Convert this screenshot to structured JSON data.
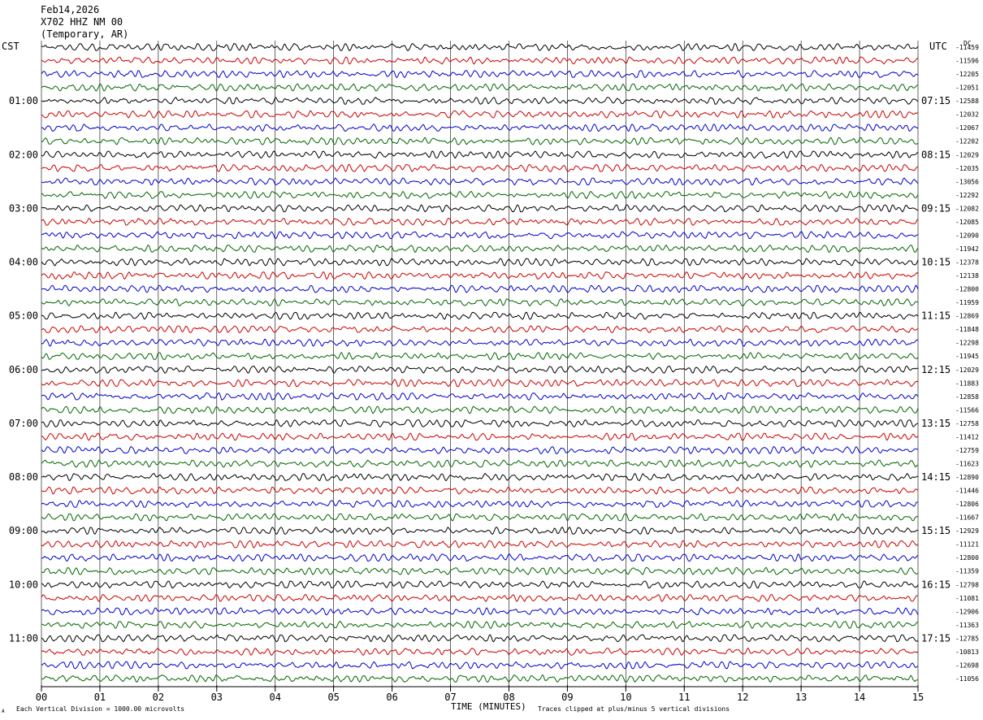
{
  "header": {
    "date": "Feb14,2026",
    "station": "X702 HHZ NM 00",
    "location": "(Temporary, AR)"
  },
  "left_zone_label": "CST",
  "right_zone_label": "UTC",
  "dc_label": "DC",
  "footer": {
    "scale_note": "Each Vertical Division = 1000.00 microvolts",
    "clip_note": "Traces clipped at plus/minus 5 vertical divisions",
    "corner_mark": "A"
  },
  "colors": {
    "trace_cycle": [
      "#000000",
      "#cc0000",
      "#0000cc",
      "#006600"
    ],
    "grid": "#000000",
    "background": "#ffffff"
  },
  "chart_data": {
    "type": "line",
    "title": "",
    "xlabel": "TIME (MINUTES)",
    "ylabel": "",
    "xlim": [
      0,
      15
    ],
    "x_ticks": [
      "00",
      "01",
      "02",
      "03",
      "04",
      "05",
      "06",
      "07",
      "08",
      "09",
      "10",
      "11",
      "12",
      "13",
      "14",
      "15"
    ],
    "minutes_per_trace": 15,
    "trace_count": 48,
    "left_hour_labels": [
      {
        "label": "01:00",
        "trace_index": 4
      },
      {
        "label": "02:00",
        "trace_index": 8
      },
      {
        "label": "03:00",
        "trace_index": 12
      },
      {
        "label": "04:00",
        "trace_index": 16
      },
      {
        "label": "05:00",
        "trace_index": 20
      },
      {
        "label": "06:00",
        "trace_index": 24
      },
      {
        "label": "07:00",
        "trace_index": 28
      },
      {
        "label": "08:00",
        "trace_index": 32
      },
      {
        "label": "09:00",
        "trace_index": 36
      },
      {
        "label": "10:00",
        "trace_index": 40
      },
      {
        "label": "11:00",
        "trace_index": 44
      }
    ],
    "right_hour_labels": [
      {
        "label": "07:15",
        "trace_index": 4
      },
      {
        "label": "08:15",
        "trace_index": 8
      },
      {
        "label": "09:15",
        "trace_index": 12
      },
      {
        "label": "10:15",
        "trace_index": 16
      },
      {
        "label": "11:15",
        "trace_index": 20
      },
      {
        "label": "12:15",
        "trace_index": 24
      },
      {
        "label": "13:15",
        "trace_index": 28
      },
      {
        "label": "14:15",
        "trace_index": 32
      },
      {
        "label": "15:15",
        "trace_index": 36
      },
      {
        "label": "16:15",
        "trace_index": 40
      },
      {
        "label": "17:15",
        "trace_index": 44
      }
    ],
    "dc_offsets": [
      "-11459",
      "-11596",
      "-12205",
      "-12051",
      "-12588",
      "-12032",
      "-12067",
      "-12202",
      "-12029",
      "-12035",
      "-13056",
      "-12292",
      "-12082",
      "-12085",
      "-12090",
      "-11942",
      "-12378",
      "-12138",
      "-12800",
      "-11959",
      "-12869",
      "-11848",
      "-12298",
      "-11945",
      "-12029",
      "-11883",
      "-12858",
      "-11566",
      "-12758",
      "-11412",
      "-12759",
      "-11623",
      "-12890",
      "-11446",
      "-12806",
      "-11667",
      "-12929",
      "-11121",
      "-12800",
      "-11359",
      "-12798",
      "-11081",
      "-12906",
      "-11363",
      "-12785",
      "-10813",
      "-12698",
      "-11056"
    ]
  }
}
